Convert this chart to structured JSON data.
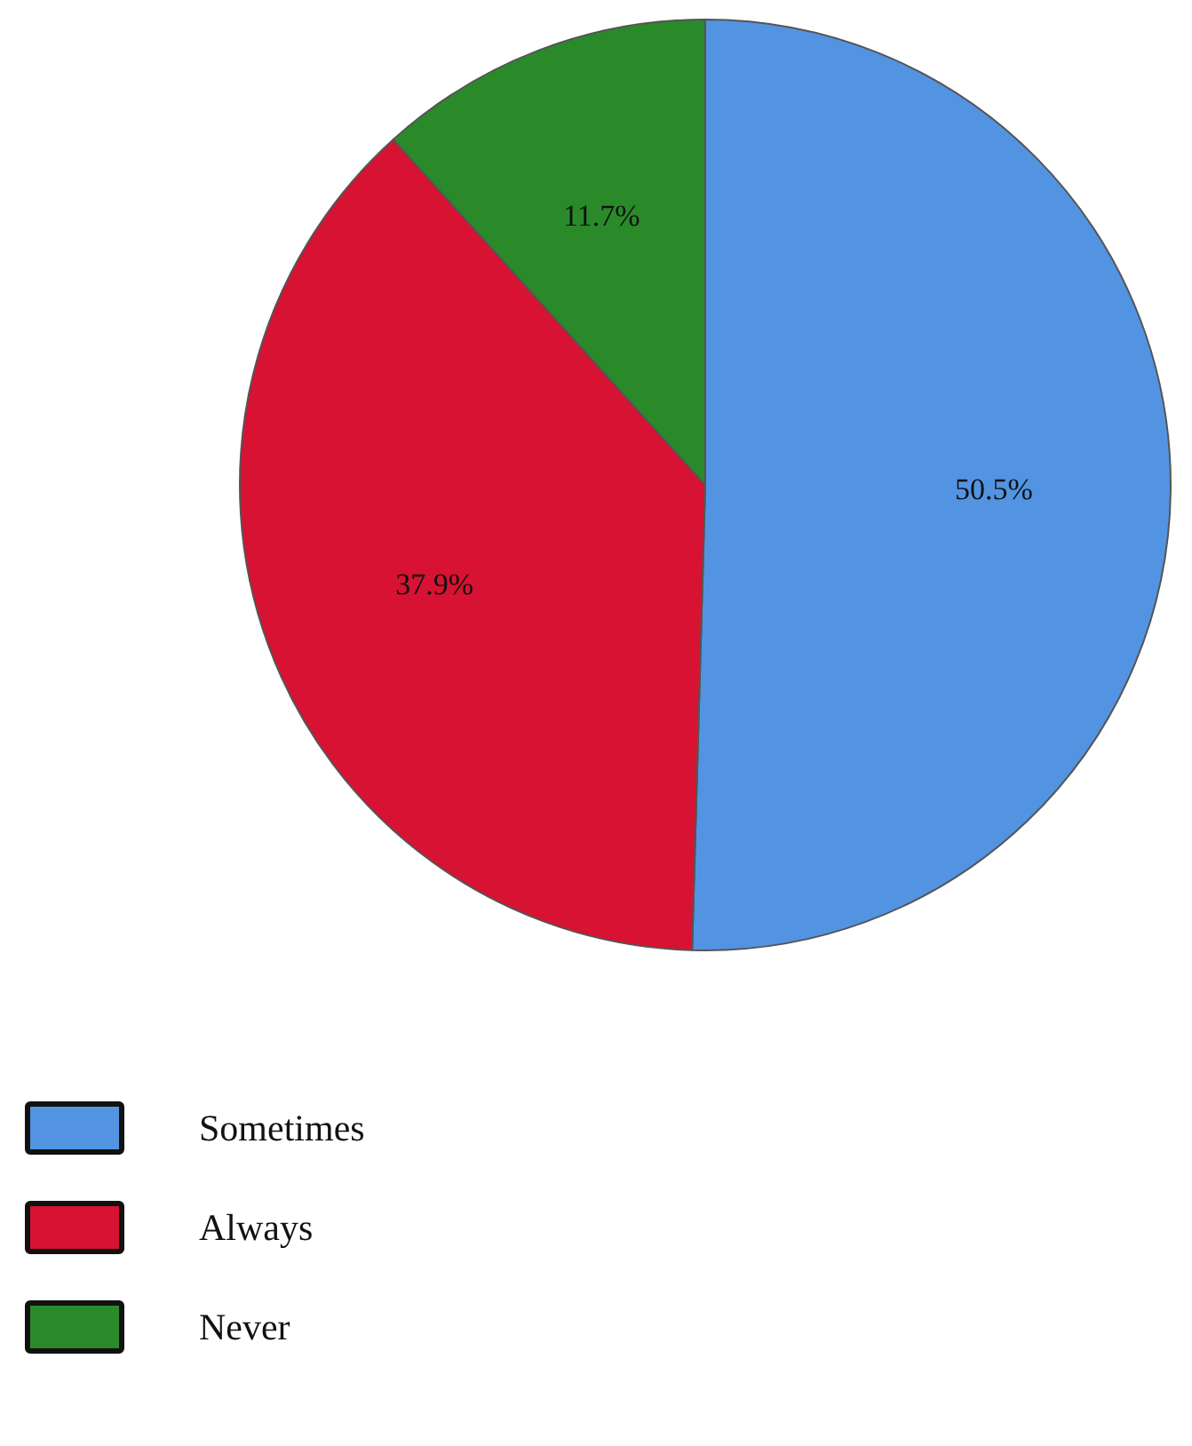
{
  "chart_data": {
    "type": "pie",
    "categories": [
      "Sometimes",
      "Always",
      "Never"
    ],
    "values": [
      50.5,
      37.9,
      11.7
    ],
    "colors": [
      "#5294e2",
      "#d81232",
      "#2a8a2a"
    ],
    "value_labels": [
      "50.5%",
      "37.9%",
      "11.7%"
    ],
    "legend": "bottom left"
  }
}
